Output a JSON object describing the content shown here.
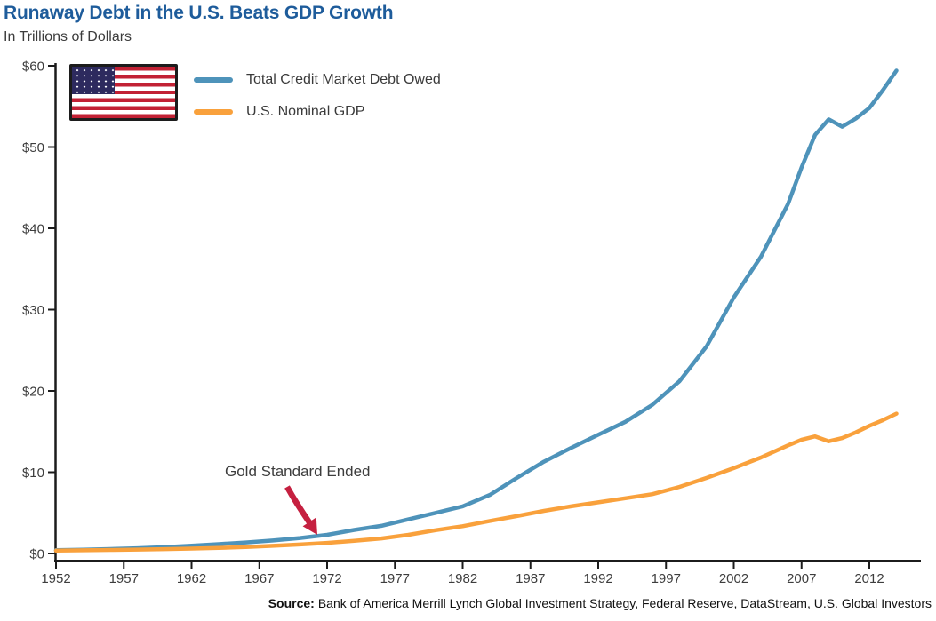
{
  "header": {
    "title": "Runaway Debt in the U.S. Beats GDP Growth",
    "subtitle": "In Trillions of Dollars"
  },
  "legend": {
    "flag_icon": "us-flag",
    "items": [
      {
        "label": "Total Credit Market Debt Owed",
        "color": "#4e93ba"
      },
      {
        "label": "U.S. Nominal GDP",
        "color": "#f9a13c"
      }
    ]
  },
  "annotation": {
    "label": "Gold Standard Ended",
    "arrow_color": "#c52040",
    "target_year": 1971
  },
  "source": {
    "prefix": "Source:",
    "text": "Bank of America Merrill Lynch Global Investment Strategy, Federal Reserve, DataStream, U.S. Global Investors"
  },
  "chart_data": {
    "type": "line",
    "title": "Runaway Debt in the U.S. Beats GDP Growth",
    "subtitle": "In Trillions of Dollars",
    "xlabel": "",
    "ylabel": "In Trillions of Dollars",
    "xlim": [
      1952,
      2014.5
    ],
    "ylim": [
      0,
      60
    ],
    "grid": false,
    "legend_position": "top-left",
    "x_ticks": [
      1952,
      1957,
      1962,
      1967,
      1972,
      1977,
      1982,
      1987,
      1992,
      1997,
      2002,
      2007,
      2012
    ],
    "y_ticks": [
      "$0",
      "$10",
      "$20",
      "$30",
      "$40",
      "$50",
      "$60"
    ],
    "y_tick_values": [
      0,
      10,
      20,
      30,
      40,
      50,
      60
    ],
    "x": [
      1952,
      1954,
      1956,
      1958,
      1960,
      1962,
      1964,
      1966,
      1968,
      1970,
      1972,
      1974,
      1976,
      1978,
      1980,
      1982,
      1984,
      1986,
      1988,
      1990,
      1992,
      1994,
      1996,
      1998,
      2000,
      2002,
      2004,
      2006,
      2007,
      2008,
      2009,
      2010,
      2011,
      2012,
      2013,
      2014
    ],
    "series": [
      {
        "name": "Total Credit Market Debt Owed",
        "color": "#4e93ba",
        "values": [
          0.4,
          0.46,
          0.55,
          0.65,
          0.78,
          0.95,
          1.15,
          1.35,
          1.6,
          1.9,
          2.3,
          2.9,
          3.4,
          4.2,
          5.0,
          5.8,
          7.2,
          9.3,
          11.3,
          13.0,
          14.6,
          16.2,
          18.3,
          21.2,
          25.5,
          31.5,
          36.5,
          43.0,
          47.5,
          51.5,
          53.4,
          52.5,
          53.5,
          54.8,
          57.0,
          59.4
        ]
      },
      {
        "name": "U.S. Nominal GDP",
        "color": "#f9a13c",
        "values": [
          0.35,
          0.39,
          0.44,
          0.48,
          0.54,
          0.6,
          0.68,
          0.8,
          0.94,
          1.1,
          1.3,
          1.55,
          1.85,
          2.3,
          2.86,
          3.35,
          4.0,
          4.6,
          5.25,
          5.8,
          6.3,
          6.8,
          7.3,
          8.2,
          9.3,
          10.5,
          11.8,
          13.3,
          14.0,
          14.4,
          13.8,
          14.2,
          14.9,
          15.7,
          16.4,
          17.2
        ]
      }
    ]
  }
}
